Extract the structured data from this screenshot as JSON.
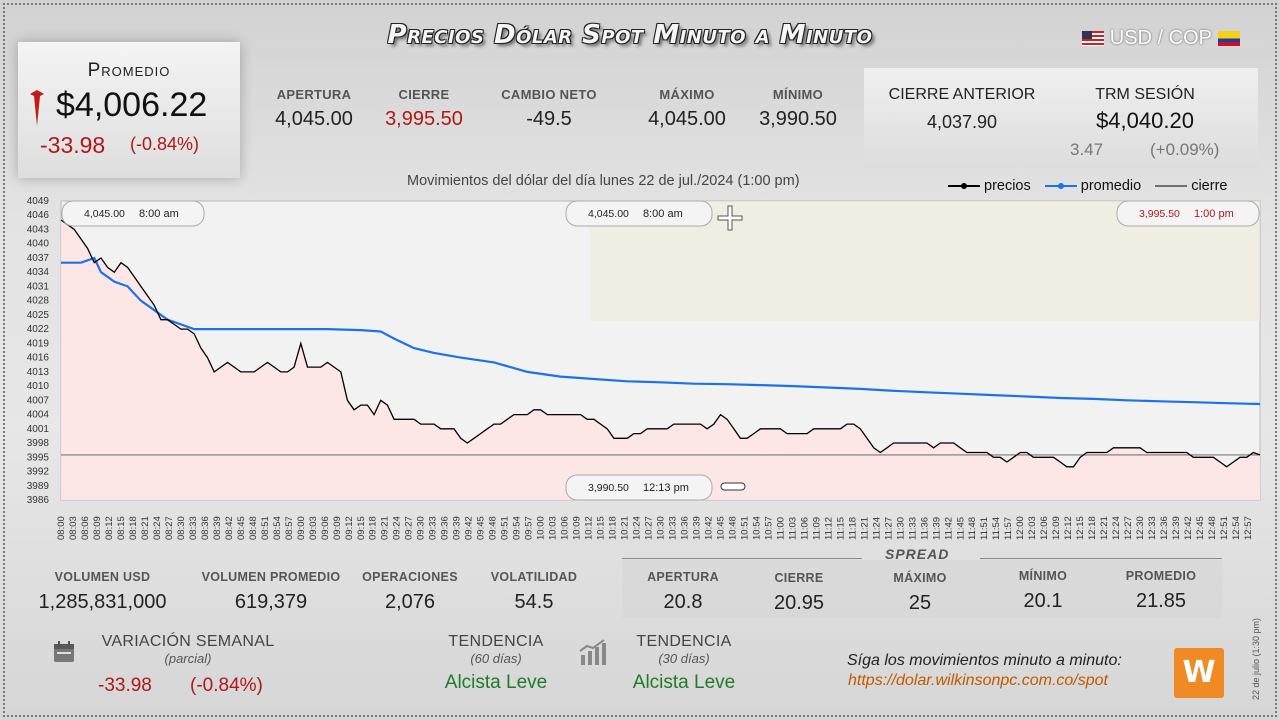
{
  "title": "Precios Dólar Spot Minuto a Minuto",
  "pair": "USD / COP",
  "promedio": {
    "label": "Promedio",
    "value": "$4,006.22",
    "change": "-33.98",
    "pct": "(-0.84%)"
  },
  "stats": [
    {
      "label": "APERTURA",
      "value": "4,045.00",
      "color": "normal"
    },
    {
      "label": "CIERRE",
      "value": "3,995.50",
      "color": "red"
    },
    {
      "label": "CAMBIO NETO",
      "value": "-49.5",
      "color": "normal"
    },
    {
      "label": "MÁXIMO",
      "value": "4,045.00",
      "color": "normal"
    },
    {
      "label": "MÍNIMO",
      "value": "3,990.50",
      "color": "normal"
    }
  ],
  "cierre_anterior": {
    "label": "CIERRE ANTERIOR",
    "value": "4,037.90"
  },
  "trm": {
    "label": "TRM SESIÓN",
    "value": "$4,040.20",
    "change": "3.47",
    "pct": "(+0.09%)"
  },
  "subtitle": "Movimientos del dólar del día lunes 22 de jul./2024 (1:00 pm)",
  "legend": {
    "precios": "precios",
    "promedio": "promedio",
    "cierre": "cierre"
  },
  "colors": {
    "precio": "#000000",
    "promedio": "#1a73e8",
    "fill": "#ffe4e4",
    "red": "#b01818",
    "green": "#1e7b2a"
  },
  "chart_data": {
    "type": "line",
    "xlabel": "",
    "ylabel": "",
    "ylim": [
      3986,
      4049
    ],
    "y_ticks": [
      4049,
      4046,
      4043,
      4040,
      4037,
      4034,
      4031,
      4028,
      4025,
      4022,
      4019,
      4016,
      4013,
      4010,
      4007,
      4004,
      4001,
      3998,
      3995,
      3992,
      3989,
      3986
    ],
    "x_ticks": [
      "08:00",
      "08:03",
      "08:06",
      "08:09",
      "08:12",
      "08:15",
      "08:18",
      "08:21",
      "08:24",
      "08:27",
      "08:30",
      "08:33",
      "08:36",
      "08:39",
      "08:42",
      "08:45",
      "08:48",
      "08:51",
      "08:54",
      "08:57",
      "09:00",
      "09:03",
      "09:06",
      "09:09",
      "09:12",
      "09:15",
      "09:18",
      "09:21",
      "09:24",
      "09:27",
      "09:30",
      "09:33",
      "09:36",
      "09:39",
      "09:42",
      "09:45",
      "09:48",
      "09:51",
      "09:54",
      "09:57",
      "10:00",
      "10:03",
      "10:06",
      "10:09",
      "10:12",
      "10:15",
      "10:18",
      "10:21",
      "10:24",
      "10:27",
      "10:30",
      "10:33",
      "10:36",
      "10:39",
      "10:42",
      "10:45",
      "10:48",
      "10:51",
      "10:54",
      "10:57",
      "11:00",
      "11:03",
      "11:06",
      "11:09",
      "11:12",
      "11:15",
      "11:18",
      "11:21",
      "11:24",
      "11:27",
      "11:30",
      "11:33",
      "11:36",
      "11:39",
      "11:42",
      "11:45",
      "11:48",
      "11:51",
      "11:54",
      "11:57",
      "12:00",
      "12:03",
      "12:06",
      "12:09",
      "12:12",
      "12:15",
      "12:18",
      "12:21",
      "12:24",
      "12:27",
      "12:30",
      "12:33",
      "12:36",
      "12:39",
      "12:42",
      "12:45",
      "12:48",
      "12:51",
      "12:54",
      "12:57"
    ],
    "x_minutes": [
      0,
      180
    ],
    "series": [
      {
        "name": "precios",
        "points": [
          [
            0,
            4045
          ],
          [
            1,
            4044
          ],
          [
            2,
            4043
          ],
          [
            3,
            4041
          ],
          [
            4,
            4039
          ],
          [
            5,
            4036
          ],
          [
            6,
            4037
          ],
          [
            7,
            4035
          ],
          [
            8,
            4034
          ],
          [
            9,
            4036
          ],
          [
            10,
            4035
          ],
          [
            11,
            4033
          ],
          [
            12,
            4031
          ],
          [
            13,
            4029
          ],
          [
            14,
            4027
          ],
          [
            15,
            4024
          ],
          [
            16,
            4024
          ],
          [
            17,
            4023
          ],
          [
            18,
            4022
          ],
          [
            19,
            4022
          ],
          [
            20,
            4021
          ],
          [
            21,
            4018
          ],
          [
            22,
            4016
          ],
          [
            23,
            4013
          ],
          [
            24,
            4014
          ],
          [
            25,
            4015
          ],
          [
            26,
            4014
          ],
          [
            27,
            4013
          ],
          [
            28,
            4013
          ],
          [
            29,
            4013
          ],
          [
            30,
            4014
          ],
          [
            31,
            4015
          ],
          [
            32,
            4014
          ],
          [
            33,
            4013
          ],
          [
            34,
            4013
          ],
          [
            35,
            4014
          ],
          [
            36,
            4019
          ],
          [
            37,
            4014
          ],
          [
            38,
            4014
          ],
          [
            39,
            4014
          ],
          [
            40,
            4015
          ],
          [
            41,
            4014
          ],
          [
            42,
            4013
          ],
          [
            43,
            4007
          ],
          [
            44,
            4005
          ],
          [
            45,
            4006
          ],
          [
            46,
            4006
          ],
          [
            47,
            4004
          ],
          [
            48,
            4007
          ],
          [
            49,
            4006
          ],
          [
            50,
            4003
          ],
          [
            51,
            4003
          ],
          [
            52,
            4003
          ],
          [
            53,
            4003
          ],
          [
            54,
            4002
          ],
          [
            55,
            4002
          ],
          [
            56,
            4002
          ],
          [
            57,
            4001
          ],
          [
            58,
            4001
          ],
          [
            59,
            4001
          ],
          [
            60,
            3999
          ],
          [
            61,
            3998
          ],
          [
            62,
            3999
          ],
          [
            63,
            4000
          ],
          [
            64,
            4001
          ],
          [
            65,
            4002
          ],
          [
            66,
            4002
          ],
          [
            67,
            4003
          ],
          [
            68,
            4004
          ],
          [
            69,
            4004
          ],
          [
            70,
            4004
          ],
          [
            71,
            4005
          ],
          [
            72,
            4005
          ],
          [
            73,
            4004
          ],
          [
            74,
            4004
          ],
          [
            75,
            4004
          ],
          [
            76,
            4004
          ],
          [
            77,
            4004
          ],
          [
            78,
            4004
          ],
          [
            79,
            4003
          ],
          [
            80,
            4003
          ],
          [
            81,
            4002
          ],
          [
            82,
            4001
          ],
          [
            83,
            3999
          ],
          [
            84,
            3999
          ],
          [
            85,
            3999
          ],
          [
            86,
            4000
          ],
          [
            87,
            4000
          ],
          [
            88,
            4001
          ],
          [
            89,
            4001
          ],
          [
            90,
            4001
          ],
          [
            91,
            4001
          ],
          [
            92,
            4002
          ],
          [
            93,
            4002
          ],
          [
            94,
            4002
          ],
          [
            95,
            4002
          ],
          [
            96,
            4002
          ],
          [
            97,
            4001
          ],
          [
            98,
            4002
          ],
          [
            99,
            4004
          ],
          [
            100,
            4003
          ],
          [
            101,
            4001
          ],
          [
            102,
            3999
          ],
          [
            103,
            3999
          ],
          [
            104,
            4000
          ],
          [
            105,
            4001
          ],
          [
            106,
            4001
          ],
          [
            107,
            4001
          ],
          [
            108,
            4001
          ],
          [
            109,
            4000
          ],
          [
            110,
            4000
          ],
          [
            111,
            4000
          ],
          [
            112,
            4000
          ],
          [
            113,
            4001
          ],
          [
            114,
            4001
          ],
          [
            115,
            4001
          ],
          [
            116,
            4001
          ],
          [
            117,
            4001
          ],
          [
            118,
            4002
          ],
          [
            119,
            4002
          ],
          [
            120,
            4001
          ],
          [
            121,
            3999
          ],
          [
            122,
            3997
          ],
          [
            123,
            3996
          ],
          [
            124,
            3997
          ],
          [
            125,
            3998
          ],
          [
            126,
            3998
          ],
          [
            127,
            3998
          ],
          [
            128,
            3998
          ],
          [
            129,
            3998
          ],
          [
            130,
            3998
          ],
          [
            131,
            3997
          ],
          [
            132,
            3998
          ],
          [
            133,
            3998
          ],
          [
            134,
            3998
          ],
          [
            135,
            3997
          ],
          [
            136,
            3996
          ],
          [
            137,
            3996
          ],
          [
            138,
            3996
          ],
          [
            139,
            3996
          ],
          [
            140,
            3995
          ],
          [
            141,
            3995
          ],
          [
            142,
            3994
          ],
          [
            143,
            3995
          ],
          [
            144,
            3996
          ],
          [
            145,
            3996
          ],
          [
            146,
            3995
          ],
          [
            147,
            3995
          ],
          [
            148,
            3995
          ],
          [
            149,
            3995
          ],
          [
            150,
            3994
          ],
          [
            151,
            3993
          ],
          [
            152,
            3993
          ],
          [
            153,
            3995
          ],
          [
            154,
            3996
          ],
          [
            155,
            3996
          ],
          [
            156,
            3996
          ],
          [
            157,
            3996
          ],
          [
            158,
            3997
          ],
          [
            159,
            3997
          ],
          [
            160,
            3997
          ],
          [
            161,
            3997
          ],
          [
            162,
            3997
          ],
          [
            163,
            3996
          ],
          [
            164,
            3996
          ],
          [
            165,
            3996
          ],
          [
            166,
            3996
          ],
          [
            167,
            3996
          ],
          [
            168,
            3996
          ],
          [
            169,
            3996
          ],
          [
            170,
            3995
          ],
          [
            171,
            3995
          ],
          [
            172,
            3995
          ],
          [
            173,
            3995
          ],
          [
            174,
            3994
          ],
          [
            175,
            3993
          ],
          [
            176,
            3994
          ],
          [
            177,
            3995
          ],
          [
            178,
            3995
          ],
          [
            179,
            3996
          ],
          [
            180,
            3995.5
          ]
        ]
      },
      {
        "name": "promedio",
        "points": [
          [
            0,
            4036
          ],
          [
            3,
            4036
          ],
          [
            5,
            4037
          ],
          [
            6,
            4034
          ],
          [
            8,
            4032
          ],
          [
            10,
            4031
          ],
          [
            12,
            4028
          ],
          [
            14,
            4026
          ],
          [
            16,
            4024
          ],
          [
            18,
            4023
          ],
          [
            20,
            4022
          ],
          [
            25,
            4022
          ],
          [
            30,
            4022
          ],
          [
            35,
            4022
          ],
          [
            40,
            4022
          ],
          [
            45,
            4021.8
          ],
          [
            48,
            4021.5
          ],
          [
            50,
            4020
          ],
          [
            53,
            4018
          ],
          [
            56,
            4017
          ],
          [
            60,
            4016
          ],
          [
            65,
            4015
          ],
          [
            70,
            4013
          ],
          [
            75,
            4012
          ],
          [
            80,
            4011.5
          ],
          [
            85,
            4011
          ],
          [
            90,
            4010.8
          ],
          [
            95,
            4010.5
          ],
          [
            100,
            4010.4
          ],
          [
            105,
            4010.2
          ],
          [
            110,
            4010
          ],
          [
            115,
            4009.7
          ],
          [
            120,
            4009.4
          ],
          [
            125,
            4009
          ],
          [
            130,
            4008.7
          ],
          [
            135,
            4008.4
          ],
          [
            140,
            4008.1
          ],
          [
            145,
            4007.8
          ],
          [
            150,
            4007.5
          ],
          [
            155,
            4007.3
          ],
          [
            160,
            4007
          ],
          [
            165,
            4006.8
          ],
          [
            170,
            4006.6
          ],
          [
            175,
            4006.4
          ],
          [
            178,
            4006.3
          ],
          [
            180,
            4006.22
          ]
        ]
      }
    ],
    "cierre_line": 3995.5,
    "annotations": [
      {
        "text": "4,045.00",
        "time": "8:00 am",
        "pos": "top-left"
      },
      {
        "text": "4,045.00",
        "time": "8:00 am",
        "pos": "top-center"
      },
      {
        "text": "3,995.50",
        "time": "1:00 pm",
        "pos": "top-right"
      },
      {
        "text": "3,990.50",
        "time": "12:13 pm",
        "pos": "bottom-center"
      }
    ]
  },
  "bottom_stats": [
    {
      "label": "VOLUMEN USD",
      "value": "1,285,831,000"
    },
    {
      "label": "VOLUMEN PROMEDIO",
      "value": "619,379"
    },
    {
      "label": "OPERACIONES",
      "value": "2,076"
    },
    {
      "label": "VOLATILIDAD",
      "value": "54.5"
    }
  ],
  "spread": {
    "title": "SPREAD",
    "items": [
      {
        "label": "APERTURA",
        "value": "20.8"
      },
      {
        "label": "CIERRE",
        "value": "20.95"
      },
      {
        "label": "MÁXIMO",
        "value": "25"
      },
      {
        "label": "MÍNIMO",
        "value": "20.1"
      },
      {
        "label": "PROMEDIO",
        "value": "21.85"
      }
    ]
  },
  "variacion": {
    "title": "VARIACIÓN SEMANAL",
    "sub": "(parcial)",
    "change": "-33.98",
    "pct": "(-0.84%)"
  },
  "tendencia60": {
    "title": "TENDENCIA",
    "sub": "(60 días)",
    "value": "Alcista Leve"
  },
  "tendencia30": {
    "title": "TENDENCIA",
    "sub": "(30 días)",
    "value": "Alcista Leve"
  },
  "follow": "Síga los movimientos minuto a minuto:",
  "url": "https://dolar.wilkinsonpc.com.co/spot",
  "side_date": "22 de julio (1:30 pm)"
}
